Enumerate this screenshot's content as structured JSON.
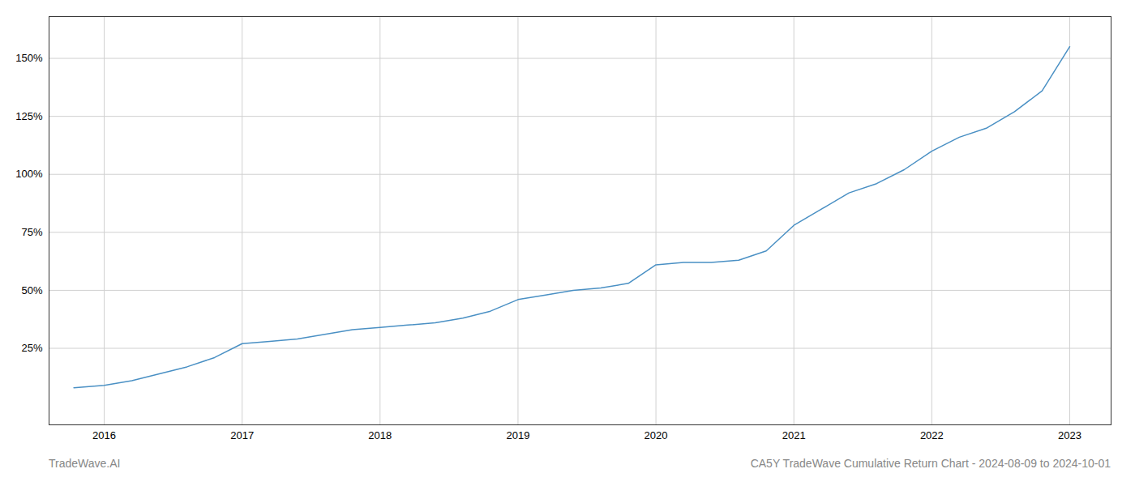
{
  "chart_data": {
    "type": "line",
    "title": "CA5Y TradeWave Cumulative Return Chart - 2024-08-09 to 2024-10-01",
    "annotations": [
      "TradeWave.AI"
    ],
    "x": [
      2015.78,
      2016.0,
      2016.2,
      2016.4,
      2016.6,
      2016.8,
      2017.0,
      2017.2,
      2017.4,
      2017.6,
      2017.8,
      2018.0,
      2018.2,
      2018.4,
      2018.6,
      2018.8,
      2019.0,
      2019.2,
      2019.4,
      2019.6,
      2019.8,
      2020.0,
      2020.2,
      2020.4,
      2020.6,
      2020.8,
      2021.0,
      2021.2,
      2021.4,
      2021.6,
      2021.8,
      2022.0,
      2022.2,
      2022.4,
      2022.6,
      2022.8,
      2023.0
    ],
    "values": [
      8,
      9,
      11,
      14,
      17,
      21,
      27,
      28,
      29,
      31,
      33,
      34,
      35,
      36,
      38,
      41,
      46,
      48,
      50,
      51,
      53,
      61,
      62,
      62,
      63,
      67,
      78,
      85,
      92,
      96,
      102,
      110,
      116,
      120,
      127,
      136,
      155
    ],
    "color": "#4a90c4",
    "xlim": [
      2015.6,
      2023.3
    ],
    "ylim": [
      -8,
      168
    ],
    "xticks": [
      2016,
      2017,
      2018,
      2019,
      2020,
      2021,
      2022,
      2023
    ],
    "yticks": [
      {
        "value": 25,
        "label": "25%"
      },
      {
        "value": 50,
        "label": "50%"
      },
      {
        "value": 75,
        "label": "75%"
      },
      {
        "value": 100,
        "label": "100%"
      },
      {
        "value": 125,
        "label": "125%"
      },
      {
        "value": 150,
        "label": "150%"
      }
    ],
    "grid": true
  }
}
